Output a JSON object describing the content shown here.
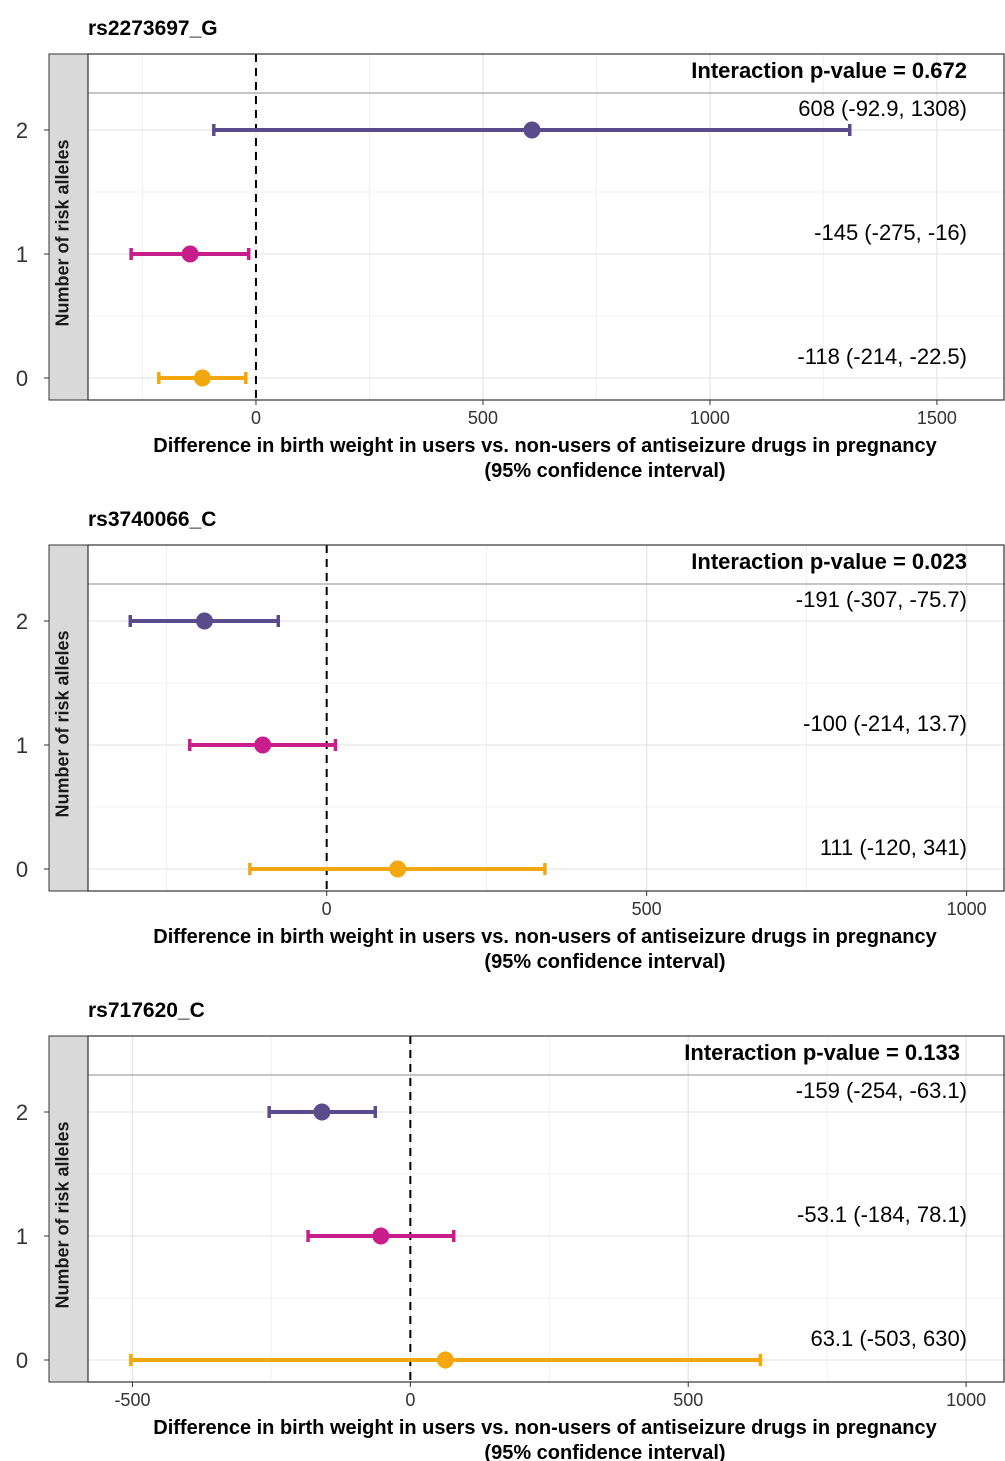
{
  "colors": {
    "2": "#5a4b8c",
    "1": "#c81e8c",
    "0": "#f2a80c"
  },
  "chart_data": [
    {
      "type": "forest",
      "title": "rs2273697_G",
      "ylabel": "Number of risk alleles",
      "xlabel": "Difference in birth weight in users vs. non-users of antiseizure drugs in pregnancy",
      "xlabel2": "(95% confidence interval)",
      "xlim": [
        -370,
        1650
      ],
      "xticks": [
        0,
        500,
        1000,
        1500
      ],
      "minor_xticks": [
        -250,
        250,
        750,
        1250
      ],
      "pvalue_label": "Interaction p-value = 0.672",
      "rows": [
        {
          "alleles": "2",
          "estimate": 608,
          "lower": -92.9,
          "upper": 1308,
          "label": "608 (-92.9, 1308)"
        },
        {
          "alleles": "1",
          "estimate": -145,
          "lower": -275,
          "upper": -16,
          "label": "-145 (-275, -16)"
        },
        {
          "alleles": "0",
          "estimate": -118,
          "lower": -214,
          "upper": -22.5,
          "label": "-118 (-214, -22.5)"
        }
      ]
    },
    {
      "type": "forest",
      "title": "rs3740066_C",
      "ylabel": "Number of risk alleles",
      "xlabel": "Difference in birth weight in users vs. non-users of antiseizure drugs in pregnancy",
      "xlabel2": "(95% confidence interval)",
      "xlim": [
        -373,
        1060
      ],
      "xticks": [
        0,
        500,
        1000
      ],
      "minor_xticks": [
        -250,
        250,
        750
      ],
      "pvalue_label": "Interaction p-value = 0.023",
      "rows": [
        {
          "alleles": "2",
          "estimate": -191,
          "lower": -307,
          "upper": -75.7,
          "label": "-191 (-307, -75.7)"
        },
        {
          "alleles": "1",
          "estimate": -100,
          "lower": -214,
          "upper": 13.7,
          "label": "-100 (-214, 13.7)"
        },
        {
          "alleles": "0",
          "estimate": 111,
          "lower": -120,
          "upper": 341,
          "label": "111 (-120, 341)"
        }
      ]
    },
    {
      "type": "forest",
      "title": "rs717620_C",
      "ylabel": "Number of risk alleles",
      "xlabel": "Difference in birth weight in users vs. non-users of antiseizure drugs in pregnancy",
      "xlabel2": "(95% confidence interval)",
      "xlim": [
        -580,
        1070
      ],
      "xticks": [
        -500,
        0,
        500,
        1000
      ],
      "minor_xticks": [
        -250,
        250,
        750
      ],
      "pvalue_label": "Interaction p-value = 0.133",
      "rows": [
        {
          "alleles": "2",
          "estimate": -159,
          "lower": -254,
          "upper": -63.1,
          "label": "-159 (-254, -63.1)"
        },
        {
          "alleles": "1",
          "estimate": -53.1,
          "lower": -184,
          "upper": 78.1,
          "label": "-53.1 (-184, 78.1)"
        },
        {
          "alleles": "0",
          "estimate": 63.1,
          "lower": -503,
          "upper": 630,
          "label": "63.1 (-503, 630)"
        }
      ]
    }
  ]
}
